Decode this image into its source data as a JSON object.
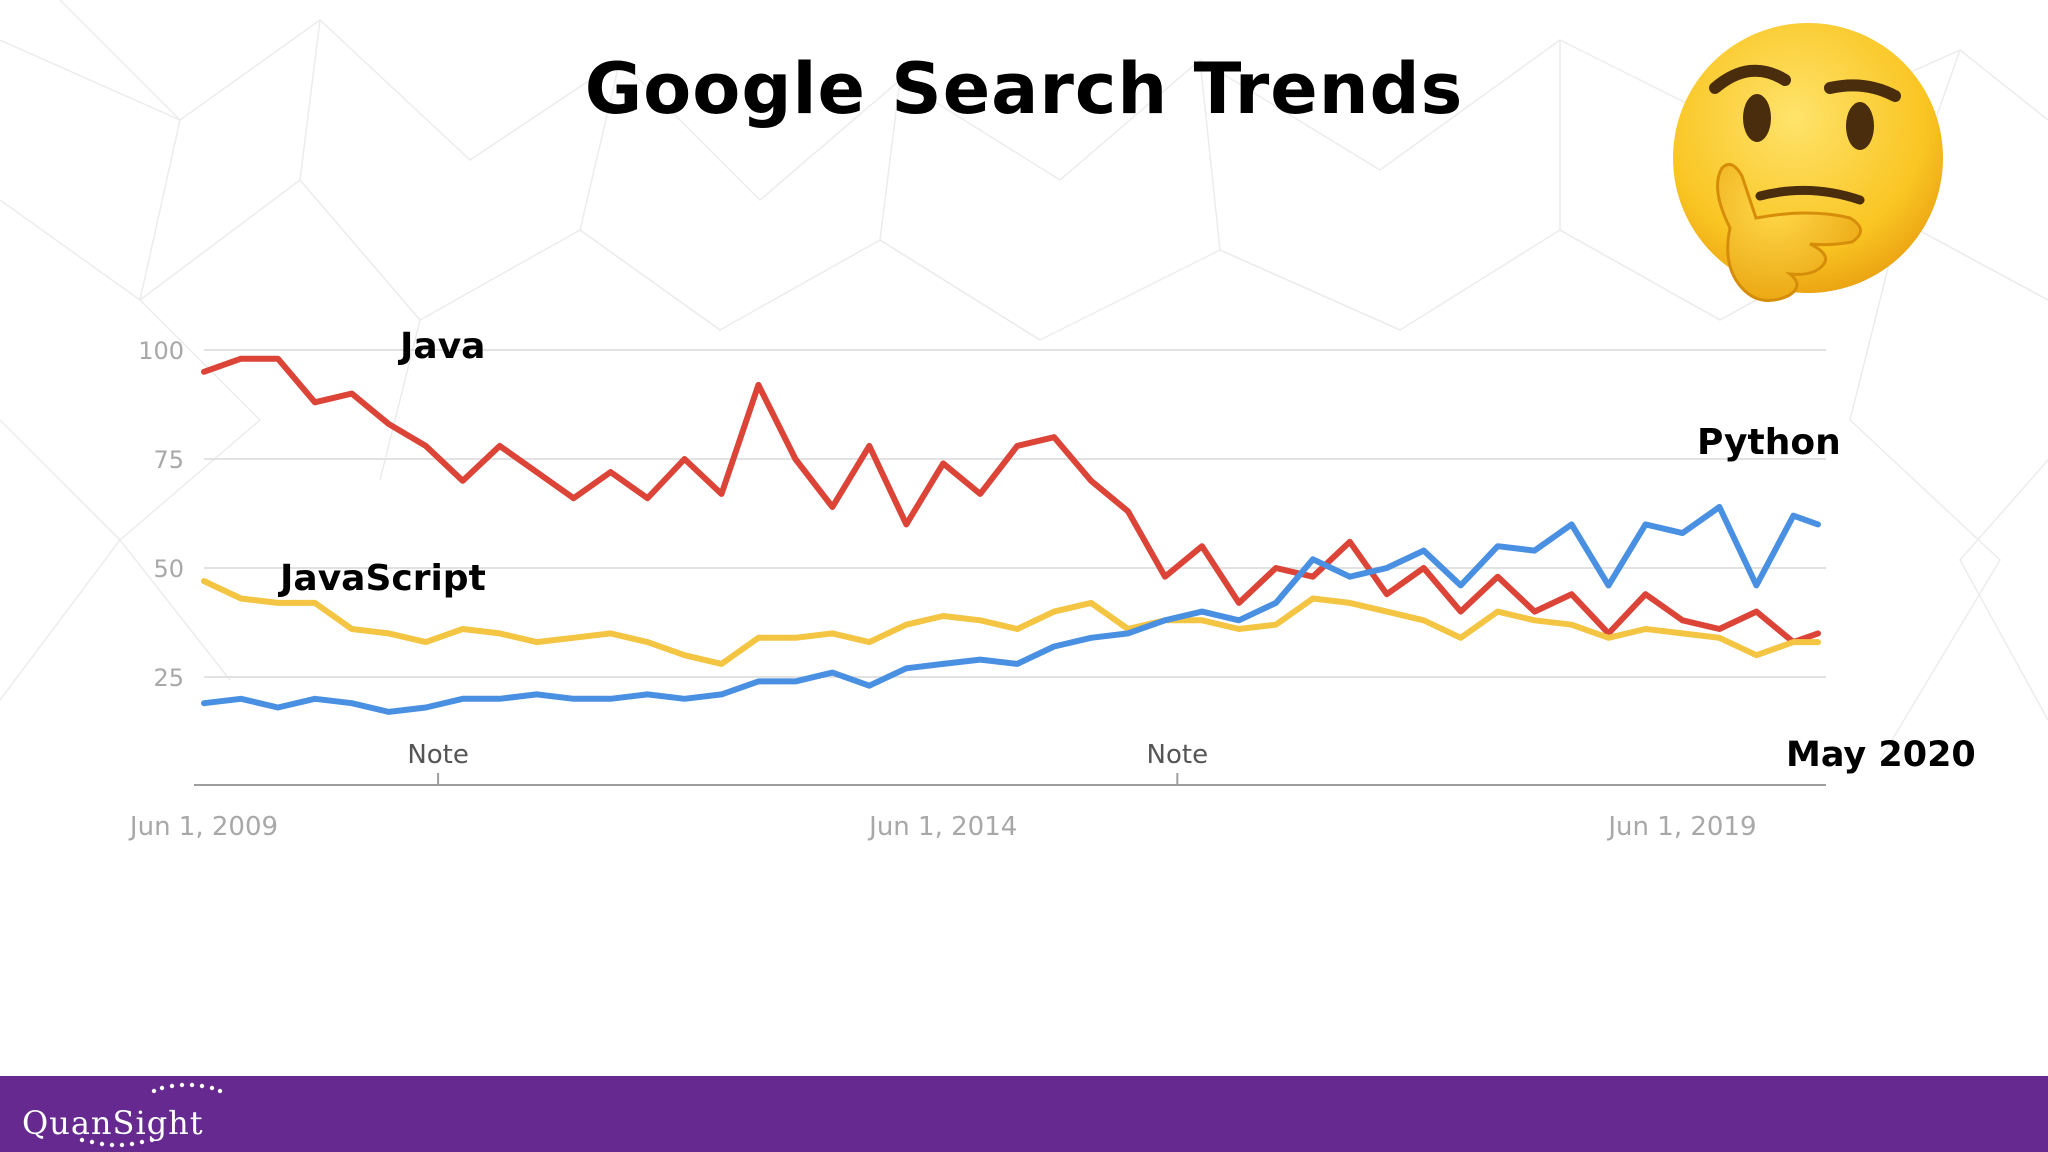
{
  "slide": {
    "title": "Google Search Trends",
    "brand": "QuanSight",
    "brand_color": "#66298f",
    "decoration": "thinking-face-emoji"
  },
  "chart_data": {
    "type": "line",
    "title": "",
    "xlabel": "",
    "ylabel": "",
    "ylim": [
      0,
      100
    ],
    "yticks": [
      25,
      50,
      75,
      100
    ],
    "xlim": [
      "2009-06",
      "2020-05"
    ],
    "xtick_labels": [
      "Jun 1, 2009",
      "Jun 1, 2014",
      "Jun 1, 2019"
    ],
    "xtick_dates": [
      "2009-06",
      "2014-06",
      "2019-06"
    ],
    "grid": true,
    "end_label": "May 2020",
    "notes": [
      {
        "date": "2011-01",
        "text": "Note"
      },
      {
        "date": "2016-01",
        "text": "Note"
      }
    ],
    "series": [
      {
        "name": "Java",
        "color": "#db4437",
        "x": [
          "2009-06",
          "2009-09",
          "2009-12",
          "2010-03",
          "2010-06",
          "2010-09",
          "2010-12",
          "2011-03",
          "2011-06",
          "2011-09",
          "2011-12",
          "2012-03",
          "2012-06",
          "2012-09",
          "2012-12",
          "2013-03",
          "2013-06",
          "2013-09",
          "2013-12",
          "2014-03",
          "2014-06",
          "2014-09",
          "2014-12",
          "2015-03",
          "2015-06",
          "2015-09",
          "2015-12",
          "2016-03",
          "2016-06",
          "2016-09",
          "2016-12",
          "2017-03",
          "2017-06",
          "2017-09",
          "2017-12",
          "2018-03",
          "2018-06",
          "2018-09",
          "2018-12",
          "2019-03",
          "2019-06",
          "2019-09",
          "2019-12",
          "2020-03",
          "2020-05"
        ],
        "values": [
          95,
          98,
          98,
          88,
          90,
          83,
          78,
          70,
          78,
          72,
          66,
          72,
          66,
          75,
          67,
          92,
          75,
          64,
          78,
          60,
          74,
          67,
          78,
          80,
          70,
          63,
          48,
          55,
          42,
          50,
          48,
          56,
          44,
          50,
          40,
          48,
          40,
          44,
          35,
          44,
          38,
          36,
          40,
          33,
          35
        ]
      },
      {
        "name": "JavaScript",
        "color": "#f4c542",
        "x": [
          "2009-06",
          "2009-09",
          "2009-12",
          "2010-03",
          "2010-06",
          "2010-09",
          "2010-12",
          "2011-03",
          "2011-06",
          "2011-09",
          "2011-12",
          "2012-03",
          "2012-06",
          "2012-09",
          "2012-12",
          "2013-03",
          "2013-06",
          "2013-09",
          "2013-12",
          "2014-03",
          "2014-06",
          "2014-09",
          "2014-12",
          "2015-03",
          "2015-06",
          "2015-09",
          "2015-12",
          "2016-03",
          "2016-06",
          "2016-09",
          "2016-12",
          "2017-03",
          "2017-06",
          "2017-09",
          "2017-12",
          "2018-03",
          "2018-06",
          "2018-09",
          "2018-12",
          "2019-03",
          "2019-06",
          "2019-09",
          "2019-12",
          "2020-03",
          "2020-05"
        ],
        "values": [
          47,
          43,
          42,
          42,
          36,
          35,
          33,
          36,
          35,
          33,
          34,
          35,
          33,
          30,
          28,
          34,
          34,
          35,
          33,
          37,
          39,
          38,
          36,
          40,
          42,
          36,
          38,
          38,
          36,
          37,
          43,
          42,
          40,
          38,
          34,
          40,
          38,
          37,
          34,
          36,
          35,
          34,
          30,
          33,
          33
        ]
      },
      {
        "name": "Python",
        "color": "#4a90e2",
        "x": [
          "2009-06",
          "2009-09",
          "2009-12",
          "2010-03",
          "2010-06",
          "2010-09",
          "2010-12",
          "2011-03",
          "2011-06",
          "2011-09",
          "2011-12",
          "2012-03",
          "2012-06",
          "2012-09",
          "2012-12",
          "2013-03",
          "2013-06",
          "2013-09",
          "2013-12",
          "2014-03",
          "2014-06",
          "2014-09",
          "2014-12",
          "2015-03",
          "2015-06",
          "2015-09",
          "2015-12",
          "2016-03",
          "2016-06",
          "2016-09",
          "2016-12",
          "2017-03",
          "2017-06",
          "2017-09",
          "2017-12",
          "2018-03",
          "2018-06",
          "2018-09",
          "2018-12",
          "2019-03",
          "2019-06",
          "2019-09",
          "2019-12",
          "2020-03",
          "2020-05"
        ],
        "values": [
          19,
          20,
          18,
          20,
          19,
          17,
          18,
          20,
          20,
          21,
          20,
          20,
          21,
          20,
          21,
          24,
          24,
          26,
          23,
          27,
          28,
          29,
          28,
          32,
          34,
          35,
          38,
          40,
          38,
          42,
          52,
          48,
          50,
          54,
          46,
          55,
          54,
          60,
          46,
          60,
          58,
          64,
          46,
          62,
          60
        ]
      }
    ],
    "series_labels": [
      "Java",
      "JavaScript",
      "Python"
    ]
  }
}
